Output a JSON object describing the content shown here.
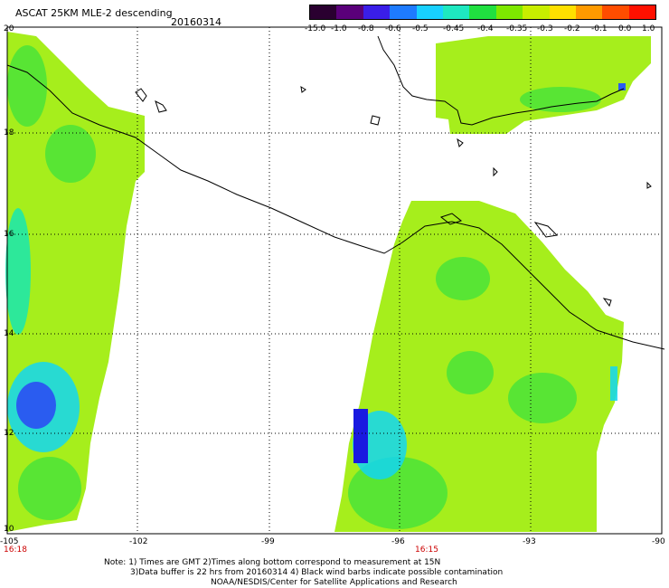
{
  "header": {
    "title": "ASCAT 25KM MLE-2 descending",
    "date": "20160314"
  },
  "colorbar": {
    "labels": [
      "-15.0",
      "-1.0",
      "-0.8",
      "-0.6",
      "-0.5",
      "-0.45",
      "-0.4",
      "-0.35",
      "-0.3",
      "-0.2",
      "-0.1",
      "0.0",
      "1.0"
    ],
    "colors": [
      "#2a0030",
      "#5a007a",
      "#3a1ee8",
      "#1e7bff",
      "#18d0ff",
      "#1ee8c0",
      "#20e040",
      "#7ee800",
      "#c8ee00",
      "#ffe000",
      "#ff9a00",
      "#ff4d00",
      "#ff1000"
    ]
  },
  "map": {
    "lon_labels": [
      "-105",
      "-102",
      "-99",
      "-96",
      "-93",
      "-90"
    ],
    "lat_labels": [
      "20",
      "18",
      "16",
      "14",
      "12",
      "10"
    ],
    "time_labels": [
      "16:18",
      "16:15"
    ],
    "colors": {
      "base": "#a6ee1c",
      "green": "#3ee23c",
      "mid_green": "#6ee62a",
      "teal": "#18e6b0",
      "cyan": "#12d6f2",
      "blue": "#2a5cf0",
      "deep_blue": "#1a1ae0",
      "coast": "#000000",
      "grid": "#000000"
    }
  },
  "notes": {
    "line1": "Note: 1) Times are GMT 2)Times along bottom correspond to measurement at 15N",
    "line2": "3)Data buffer is 22 hrs from 20160314 4) Black wind barbs indicate possible contamination",
    "line3": "NOAA/NESDIS/Center for Satellite Applications and Research"
  }
}
